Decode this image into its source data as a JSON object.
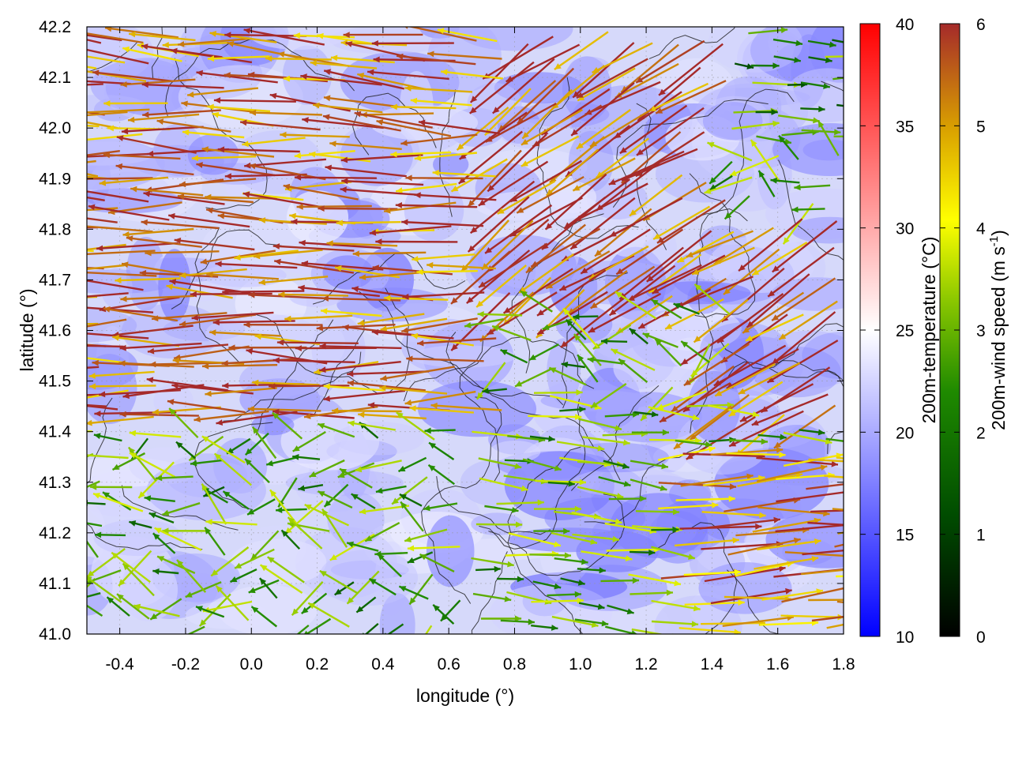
{
  "chart_data": {
    "type": "heatmap",
    "title": "",
    "xlabel": "longitude (°)",
    "ylabel": "latitude (°)",
    "xlim": [
      -0.5,
      1.8
    ],
    "ylim": [
      41.0,
      42.2
    ],
    "xticks": [
      -0.4,
      -0.2,
      0.0,
      0.2,
      0.4,
      0.6,
      0.8,
      1.0,
      1.2,
      1.4,
      1.6,
      1.8
    ],
    "yticks": [
      41.0,
      41.1,
      41.2,
      41.3,
      41.4,
      41.5,
      41.6,
      41.7,
      41.8,
      41.9,
      42.0,
      42.1,
      42.2
    ],
    "xtick_labels": [
      "-0.4",
      "-0.2",
      "0.0",
      "0.2",
      "0.4",
      "0.6",
      "0.8",
      "1.0",
      "1.2",
      "1.4",
      "1.6",
      "1.8"
    ],
    "ytick_labels": [
      "41.0",
      "41.1",
      "41.2",
      "41.3",
      "41.4",
      "41.5",
      "41.6",
      "41.7",
      "41.8",
      "41.9",
      "42.0",
      "42.1",
      "42.2"
    ],
    "grid": true,
    "field": {
      "label": "200m-temperature (°C)",
      "range": [
        10,
        40
      ],
      "ticks": [
        10,
        15,
        20,
        25,
        30,
        35,
        40
      ],
      "tick_labels": [
        "10",
        "15",
        "20",
        "25",
        "30",
        "35",
        "40"
      ],
      "colormap": [
        "#0000ff",
        "#ffffff",
        "#ff0000"
      ],
      "typical_range_shown": [
        17,
        24
      ]
    },
    "wind": {
      "label": "200m-wind speed (m s-1)",
      "label_main": "200m-wind speed (m s",
      "label_exp": "-1",
      "label_end": ")",
      "range": [
        0,
        6
      ],
      "ticks": [
        0,
        1,
        2,
        3,
        4,
        5,
        6
      ],
      "tick_labels": [
        "0",
        "1",
        "2",
        "3",
        "4",
        "5",
        "6"
      ],
      "colormap": [
        "#000000",
        "#006400",
        "#4aa000",
        "#ffff00",
        "#e6a500",
        "#a52a2a"
      ]
    },
    "contours": "terrain elevation (black lines)"
  }
}
